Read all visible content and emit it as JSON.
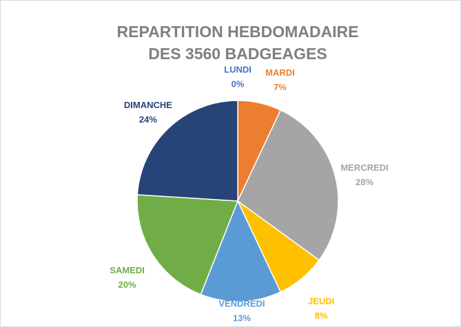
{
  "chart_data": {
    "type": "pie",
    "title": "REPARTITION HEBDOMADAIRE DES 3560 BADGEAGES",
    "categories": [
      "LUNDI",
      "MARDI",
      "MERCREDI",
      "JEUDI",
      "VENDREDI",
      "SAMEDI",
      "DIMANCHE"
    ],
    "values": [
      0,
      7,
      28,
      8,
      13,
      20,
      24
    ],
    "value_labels": [
      "0%",
      "7%",
      "28%",
      "8%",
      "13%",
      "20%",
      "24%"
    ],
    "colors": [
      "#4472c4",
      "#ed7d31",
      "#a5a5a5",
      "#ffc000",
      "#5b9bd5",
      "#70ad47",
      "#264478"
    ]
  }
}
